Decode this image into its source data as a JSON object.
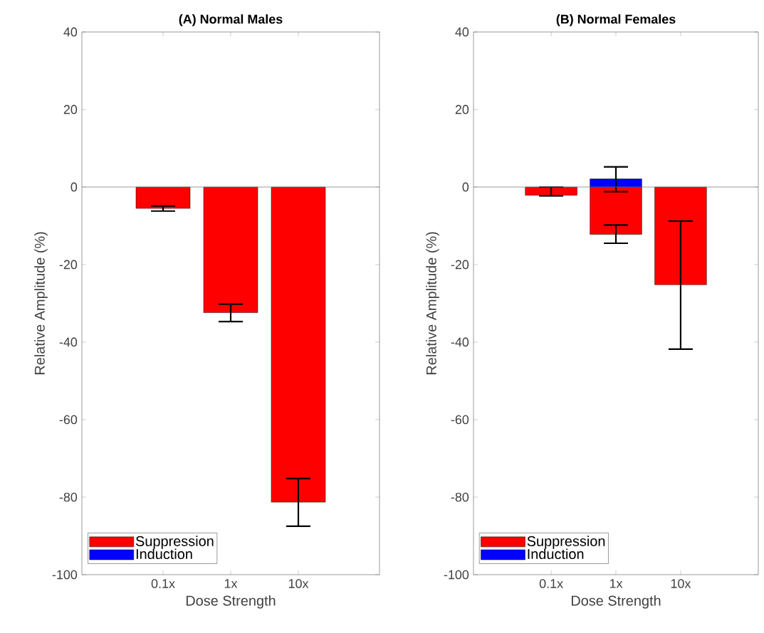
{
  "chart_data": [
    {
      "type": "bar",
      "title": "(A) Normal Males",
      "xlabel": "Dose Strength",
      "ylabel": "Relative Amplitude (%)",
      "categories": [
        "0.1x",
        "1x",
        "10x"
      ],
      "series": [
        {
          "name": "Suppression",
          "color": "#ff0000",
          "values": [
            -5.5,
            -32.4,
            -81.3
          ],
          "errors": [
            [
              -6.2,
              -4.9
            ],
            [
              -34.7,
              -30.2
            ],
            [
              -87.5,
              -75.2
            ]
          ]
        },
        {
          "name": "Induction",
          "color": "#0000ff",
          "values": [
            null,
            null,
            null
          ]
        }
      ],
      "ylim": [
        -100,
        40
      ],
      "yticks": [
        -100,
        -80,
        -60,
        -40,
        -20,
        0,
        20,
        40
      ],
      "legend": "bottom left",
      "ref_lines": [
        {
          "axis": "y",
          "value": 0,
          "color": "#808080"
        }
      ]
    },
    {
      "type": "bar",
      "title": "(B) Normal Females",
      "xlabel": "Dose Strength",
      "ylabel": "Relative Amplitude (%)",
      "categories": [
        "0.1x",
        "1x",
        "10x"
      ],
      "series": [
        {
          "name": "Suppression",
          "color": "#ff0000",
          "values": [
            -2.1,
            -12.2,
            -25.2
          ],
          "errors": [
            [
              -2.3,
              0
            ],
            [
              -14.5,
              -9.8
            ],
            [
              -41.8,
              -8.8
            ]
          ]
        },
        {
          "name": "Induction",
          "color": "#0000ff",
          "values": [
            null,
            2.1,
            null
          ],
          "errors": [
            null,
            [
              -1.2,
              5.2
            ],
            null
          ]
        }
      ],
      "ylim": [
        -100,
        40
      ],
      "yticks": [
        -100,
        -80,
        -60,
        -40,
        -20,
        0,
        20,
        40
      ],
      "legend": "bottom left",
      "ref_lines": [
        {
          "axis": "y",
          "value": 0,
          "color": "#808080"
        }
      ]
    }
  ]
}
